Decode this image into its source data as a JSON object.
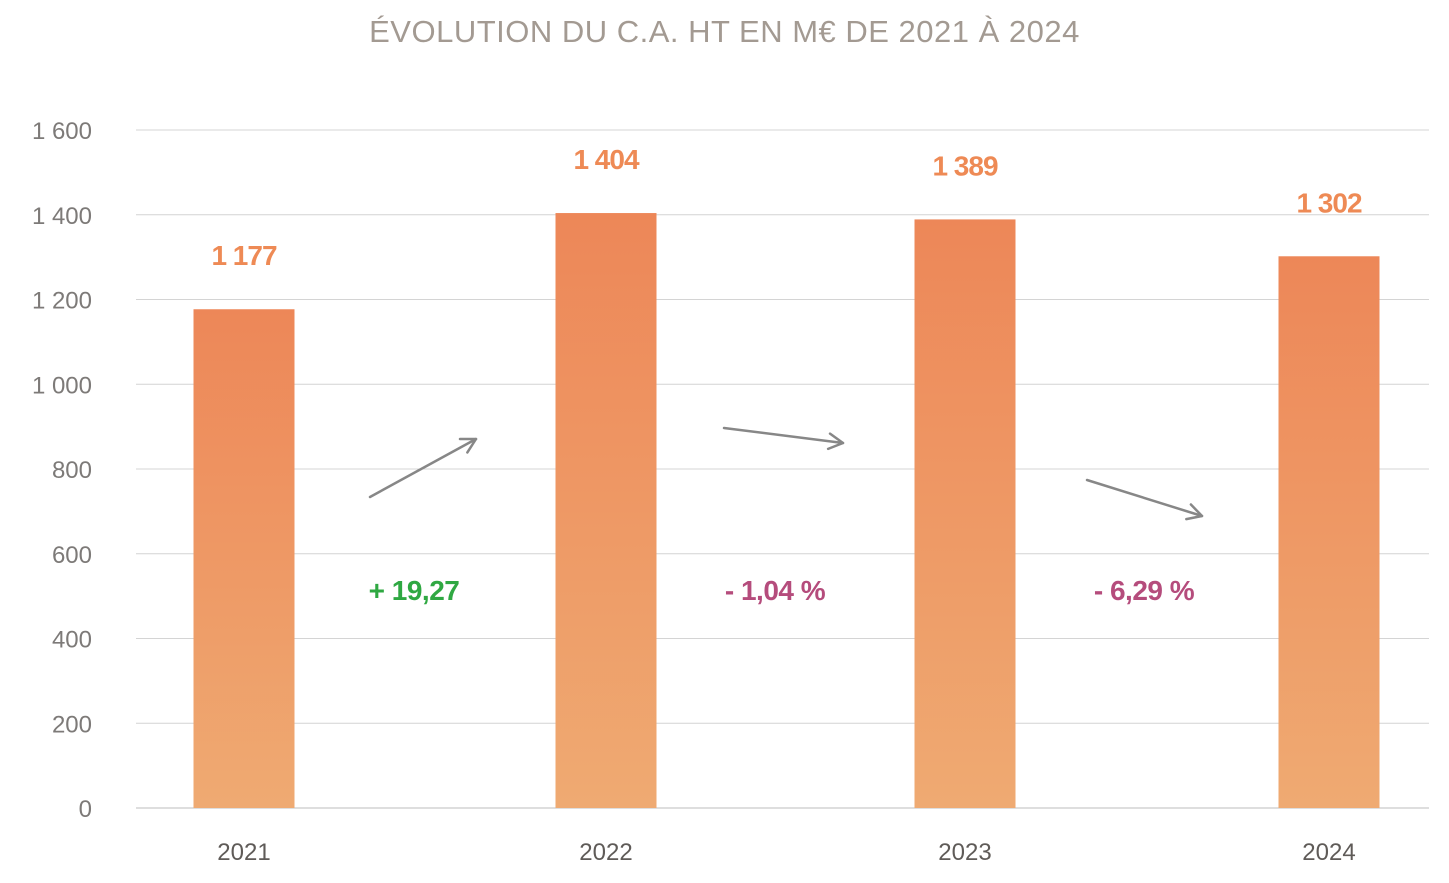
{
  "colors": {
    "bar_top": "#ed8758",
    "bar_bottom": "#efaa72",
    "value_label": "#ee8a55",
    "increase": "#2fa842",
    "decrease": "#b54c7c",
    "arrow": "#878787",
    "grid": "#d4d4d4"
  },
  "chart_data": {
    "type": "bar",
    "title": "ÉVOLUTION DU C.A. HT EN M€ DE 2021 À 2024",
    "xlabel": "",
    "ylabel": "",
    "categories": [
      "2021",
      "2022",
      "2023",
      "2024"
    ],
    "values": [
      1177,
      1404,
      1389,
      1302
    ],
    "value_labels": [
      "1 177",
      "1 404",
      "1 389",
      "1 302"
    ],
    "ylim": [
      0,
      1600
    ],
    "yticks": [
      0,
      200,
      400,
      600,
      800,
      1000,
      1200,
      1400,
      1600
    ],
    "ytick_labels": [
      "0",
      "200",
      "400",
      "600",
      "800",
      "1 000",
      "1 200",
      "1 400",
      "1 600"
    ],
    "grid": true,
    "legend": "none",
    "changes": [
      {
        "label": "+ 19,27",
        "direction": "up"
      },
      {
        "label": "- 1,04 %",
        "direction": "down"
      },
      {
        "label": "- 6,29 %",
        "direction": "down"
      }
    ]
  }
}
